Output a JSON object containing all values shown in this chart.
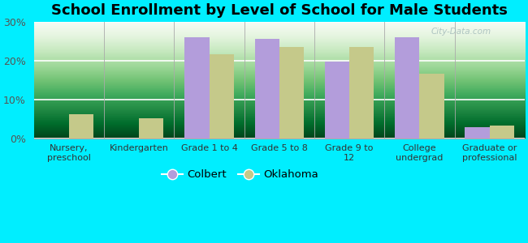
{
  "title": "School Enrollment by Level of School for Male Students",
  "categories": [
    "Nursery,\npreschool",
    "Kindergarten",
    "Grade 1 to 4",
    "Grade 5 to 8",
    "Grade 9 to\n12",
    "College\nundergrad",
    "Graduate or\nprofessional"
  ],
  "colbert_values": [
    0,
    0,
    26.0,
    25.5,
    19.8,
    26.0,
    2.8
  ],
  "oklahoma_values": [
    6.2,
    5.2,
    21.5,
    23.5,
    23.5,
    16.5,
    3.3
  ],
  "colbert_color": "#b39ddb",
  "oklahoma_color": "#c5c98a",
  "background_color": "#00eeff",
  "ylim": [
    0,
    30
  ],
  "yticks": [
    0,
    10,
    20,
    30
  ],
  "ytick_labels": [
    "0%",
    "10%",
    "20%",
    "30%"
  ],
  "bar_width": 0.35,
  "legend_labels": [
    "Colbert",
    "Oklahoma"
  ],
  "title_fontsize": 13,
  "axis_label_fontsize": 8.0,
  "legend_fontsize": 9.5,
  "tick_color": "#555555",
  "watermark": "City-Data.com"
}
